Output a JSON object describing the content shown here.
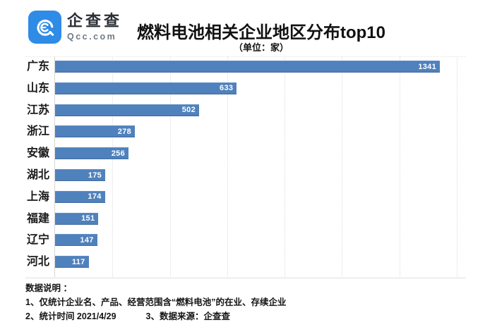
{
  "brand": {
    "name": "企查查",
    "domain": "Qcc.com",
    "logo_color": "#2E8BE6"
  },
  "header": {
    "title": "燃料电池相关企业地区分布top10",
    "subtitle": "（单位：家）"
  },
  "chart_data": {
    "type": "bar",
    "orientation": "horizontal",
    "title": "燃料电池相关企业地区分布top10",
    "unit_label": "（单位：家）",
    "categories": [
      "广东",
      "山东",
      "江苏",
      "浙江",
      "安徽",
      "湖北",
      "上海",
      "福建",
      "辽宁",
      "河北"
    ],
    "values": [
      1341,
      633,
      502,
      278,
      256,
      175,
      174,
      151,
      147,
      117
    ],
    "xlim": [
      0,
      1400
    ],
    "gridline_interval": 200,
    "grid": true,
    "legend": false,
    "bar_color": "#4F81BD",
    "value_label_color": "#ffffff",
    "value_labels_inside": true
  },
  "footer": {
    "heading": "数据说明 ：",
    "notes": [
      "1、仅统计企业名、产品、经营范围含“燃料电池”的在业、存续企业",
      "2、统计时间 2021/4/29",
      "3、数据来源：企查查"
    ]
  }
}
